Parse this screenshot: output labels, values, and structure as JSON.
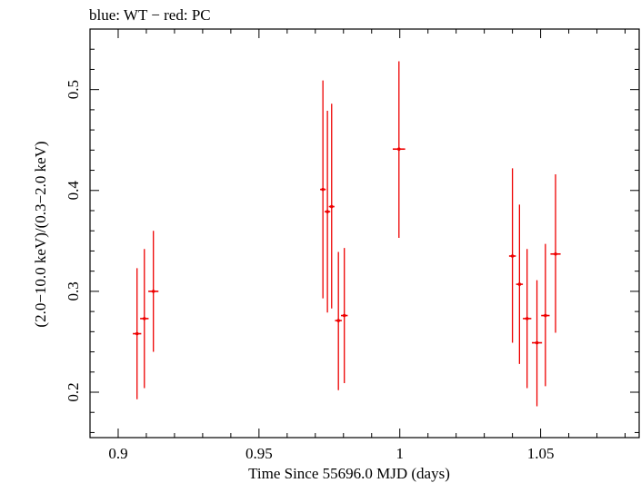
{
  "chart_data": {
    "type": "scatter",
    "title": "blue: WT − red: PC",
    "xlabel": "Time Since 55696.0 MJD (days)",
    "ylabel": "(2.0−10.0 keV)/(0.3−2.0 keV)",
    "xlim": [
      0.89,
      1.085
    ],
    "ylim": [
      0.155,
      0.56
    ],
    "x_ticks": [
      0.9,
      0.95,
      1.0,
      1.05
    ],
    "x_tick_labels": [
      "0.9",
      "0.95",
      "1",
      "1.05"
    ],
    "y_ticks": [
      0.2,
      0.3,
      0.4,
      0.5
    ],
    "y_tick_labels": [
      "0.2",
      "0.3",
      "0.4",
      "0.5"
    ],
    "grid": false,
    "series": [
      {
        "color": "#ee0000",
        "points": [
          {
            "x": 0.9067,
            "y": 0.258,
            "xerr": 0.0015,
            "ylo": 0.193,
            "yhi": 0.323
          },
          {
            "x": 0.9093,
            "y": 0.273,
            "xerr": 0.0015,
            "ylo": 0.204,
            "yhi": 0.342
          },
          {
            "x": 0.9125,
            "y": 0.3,
            "xerr": 0.0018,
            "ylo": 0.24,
            "yhi": 0.36
          },
          {
            "x": 0.9727,
            "y": 0.401,
            "xerr": 0.001,
            "ylo": 0.293,
            "yhi": 0.509
          },
          {
            "x": 0.9743,
            "y": 0.379,
            "xerr": 0.001,
            "ylo": 0.279,
            "yhi": 0.479
          },
          {
            "x": 0.9758,
            "y": 0.384,
            "xerr": 0.001,
            "ylo": 0.283,
            "yhi": 0.486
          },
          {
            "x": 0.9782,
            "y": 0.271,
            "xerr": 0.0012,
            "ylo": 0.202,
            "yhi": 0.339
          },
          {
            "x": 0.9803,
            "y": 0.276,
            "xerr": 0.0012,
            "ylo": 0.209,
            "yhi": 0.343
          },
          {
            "x": 0.9997,
            "y": 0.441,
            "xerr": 0.0022,
            "ylo": 0.353,
            "yhi": 0.528
          },
          {
            "x": 1.04,
            "y": 0.335,
            "xerr": 0.0012,
            "ylo": 0.249,
            "yhi": 0.422
          },
          {
            "x": 1.0425,
            "y": 0.307,
            "xerr": 0.0012,
            "ylo": 0.228,
            "yhi": 0.386
          },
          {
            "x": 1.0452,
            "y": 0.273,
            "xerr": 0.0015,
            "ylo": 0.204,
            "yhi": 0.342
          },
          {
            "x": 1.0487,
            "y": 0.249,
            "xerr": 0.0018,
            "ylo": 0.186,
            "yhi": 0.311
          },
          {
            "x": 1.0517,
            "y": 0.276,
            "xerr": 0.0015,
            "ylo": 0.206,
            "yhi": 0.347
          },
          {
            "x": 1.0553,
            "y": 0.337,
            "xerr": 0.0018,
            "ylo": 0.259,
            "yhi": 0.416
          }
        ]
      }
    ]
  }
}
